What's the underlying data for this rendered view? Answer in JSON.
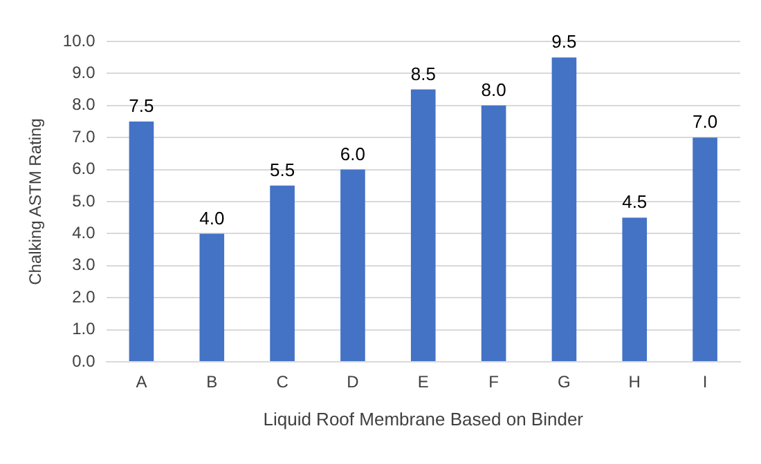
{
  "chart_data": {
    "type": "bar",
    "xlabel": "Liquid Roof Membrane Based on Binder",
    "ylabel": "Chalking ASTM Rating",
    "categories": [
      "A",
      "B",
      "C",
      "D",
      "E",
      "F",
      "G",
      "H",
      "I"
    ],
    "values": [
      7.5,
      4,
      5.5,
      6,
      8.5,
      8,
      9.5,
      4.5,
      7
    ],
    "value_labels": [
      "7.5",
      "4.0",
      "5.5",
      "6.0",
      "8.5",
      "8.0",
      "9.5",
      "4.5",
      "7.0"
    ],
    "color": "#4472c4",
    "ylim": [
      0,
      10
    ],
    "yticks": [
      {
        "value": 0,
        "label": "0.0"
      },
      {
        "value": 1,
        "label": "1.0"
      },
      {
        "value": 2,
        "label": "2.0"
      },
      {
        "value": 3,
        "label": "3.0"
      },
      {
        "value": 4,
        "label": "4.0"
      },
      {
        "value": 5,
        "label": "5.0"
      },
      {
        "value": 6,
        "label": "6.0"
      },
      {
        "value": 7,
        "label": "7.0"
      },
      {
        "value": 8,
        "label": "8.0"
      },
      {
        "value": 9,
        "label": "9.0"
      },
      {
        "value": 10,
        "label": "10.0"
      }
    ],
    "grid": "y",
    "legend": false
  }
}
